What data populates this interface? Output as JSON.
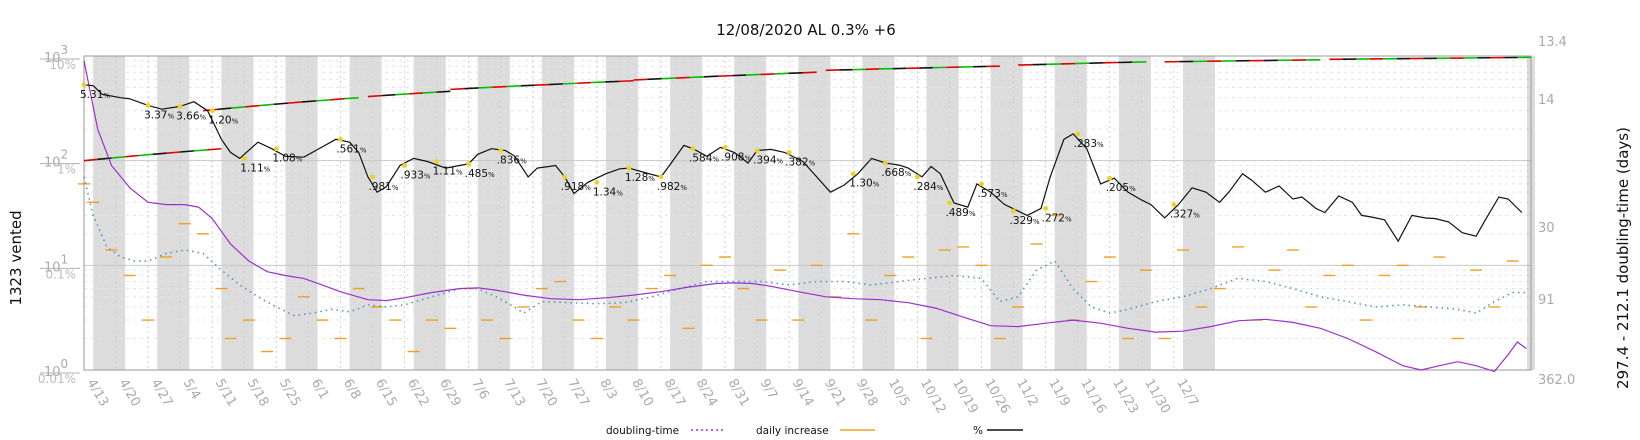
{
  "chart_data": {
    "type": "line",
    "title": "12/08/2020 AL 0.3% +6",
    "ylabel_left": "1323 vented",
    "ylabel_right": "297.4 - 212.1 doubling-time (days)",
    "left_axis": {
      "scale": "log",
      "range": [
        1,
        1000
      ],
      "ticks": [
        "10",
        "10",
        "10",
        "10"
      ],
      "exps": [
        "0",
        "1",
        "2",
        "3"
      ]
    },
    "pct_axis": {
      "scale": "log",
      "range": [
        0.01,
        10
      ],
      "ticks": [
        "0.01%",
        "0.1%",
        "1%",
        "10%"
      ]
    },
    "right_axis": {
      "ticks": [
        "13.4",
        "14",
        "30",
        "91",
        "362.0"
      ]
    },
    "x_dates": [
      "4/13",
      "4/20",
      "4/27",
      "5/4",
      "5/11",
      "5/18",
      "5/25",
      "6/1",
      "6/8",
      "6/15",
      "6/22",
      "6/29",
      "7/6",
      "7/13",
      "7/20",
      "7/27",
      "8/3",
      "8/10",
      "8/17",
      "8/24",
      "8/31",
      "9/7",
      "9/14",
      "9/21",
      "9/28",
      "10/5",
      "10/12",
      "10/19",
      "10/26",
      "11/2",
      "11/9",
      "11/16",
      "11/23",
      "11/30",
      "12/7"
    ],
    "grid": true,
    "legend": {
      "placement": "bottom",
      "entries": [
        "doubling-time",
        "daily increase",
        "%"
      ]
    },
    "colors": {
      "doubling": "#9b30d0",
      "doubling_dotted": "#4a90c0",
      "daily": "#f0a020",
      "pct": "#111111",
      "shade": "#dcdcdc",
      "up": "#e00000",
      "down": "#00c000"
    },
    "pct_labels": [
      {
        "date": "4/13",
        "label": "5.31"
      },
      {
        "date": "4/27",
        "label": "3.37"
      },
      {
        "date": "5/4",
        "label": "3.66"
      },
      {
        "date": "5/11",
        "label": "1.20"
      },
      {
        "date": "5/18",
        "label": "1.11"
      },
      {
        "date": "5/25",
        "label": "1.08"
      },
      {
        "date": "6/8",
        "label": ".561"
      },
      {
        "date": "6/15",
        "label": ".981"
      },
      {
        "date": "6/22",
        "label": ".933"
      },
      {
        "date": "6/29",
        "label": "1.11"
      },
      {
        "date": "7/6",
        "label": ".485"
      },
      {
        "date": "7/13",
        "label": ".836"
      },
      {
        "date": "7/27",
        "label": ".918"
      },
      {
        "date": "8/3",
        "label": "1.34"
      },
      {
        "date": "8/10",
        "label": "1.28"
      },
      {
        "date": "8/17",
        "label": ".982"
      },
      {
        "date": "8/24",
        "label": ".584"
      },
      {
        "date": "8/31",
        "label": ".908"
      },
      {
        "date": "9/7",
        "label": ".394"
      },
      {
        "date": "9/14",
        "label": ".382"
      },
      {
        "date": "9/28",
        "label": "1.30"
      },
      {
        "date": "10/5",
        "label": ".668"
      },
      {
        "date": "10/12",
        "label": ".284"
      },
      {
        "date": "10/19",
        "label": ".489"
      },
      {
        "date": "10/26",
        "label": ".573"
      },
      {
        "date": "11/2",
        "label": ".329"
      },
      {
        "date": "11/9",
        "label": ".272"
      },
      {
        "date": "11/16",
        "label": ".283"
      },
      {
        "date": "11/23",
        "label": ".205"
      },
      {
        "date": "12/7",
        "label": ".327"
      }
    ],
    "pct_series": [
      [
        0,
        5.3
      ],
      [
        2,
        5.2
      ],
      [
        4,
        4.3
      ],
      [
        8,
        4.0
      ],
      [
        10,
        3.9
      ],
      [
        14,
        3.37
      ],
      [
        17,
        3.1
      ],
      [
        21,
        3.3
      ],
      [
        24,
        3.66
      ],
      [
        27,
        3.0
      ],
      [
        30,
        1.6
      ],
      [
        32,
        1.2
      ],
      [
        34,
        1.05
      ],
      [
        38,
        1.5
      ],
      [
        41,
        1.3
      ],
      [
        44,
        1.1
      ],
      [
        48,
        1.08
      ],
      [
        52,
        1.35
      ],
      [
        55,
        1.6
      ],
      [
        58,
        1.5
      ],
      [
        60,
        1.2
      ],
      [
        62,
        0.7
      ],
      [
        64,
        0.5
      ],
      [
        66,
        0.561
      ],
      [
        69,
        0.9
      ],
      [
        72,
        1.05
      ],
      [
        75,
        0.981
      ],
      [
        79,
        0.85
      ],
      [
        82,
        0.9
      ],
      [
        84,
        0.933
      ],
      [
        86,
        1.15
      ],
      [
        89,
        1.3
      ],
      [
        92,
        1.25
      ],
      [
        94,
        1.11
      ],
      [
        97,
        0.7
      ],
      [
        99,
        0.85
      ],
      [
        103,
        0.9
      ],
      [
        105,
        0.7
      ],
      [
        107,
        0.485
      ],
      [
        110,
        0.62
      ],
      [
        114,
        0.75
      ],
      [
        117,
        0.836
      ],
      [
        119,
        0.85
      ],
      [
        122,
        0.78
      ],
      [
        126,
        0.7
      ],
      [
        128,
        0.918
      ],
      [
        131,
        1.4
      ],
      [
        133,
        1.3
      ],
      [
        136,
        1.1
      ],
      [
        139,
        1.34
      ],
      [
        142,
        1.2
      ],
      [
        145,
        0.95
      ],
      [
        147,
        1.25
      ],
      [
        150,
        1.28
      ],
      [
        153,
        1.2
      ],
      [
        157,
        0.982
      ],
      [
        160,
        0.7
      ],
      [
        163,
        0.5
      ],
      [
        166,
        0.584
      ],
      [
        169,
        0.75
      ],
      [
        172,
        1.05
      ],
      [
        175,
        0.95
      ],
      [
        178,
        0.908
      ],
      [
        180,
        0.85
      ],
      [
        183,
        0.7
      ],
      [
        185,
        0.88
      ],
      [
        187,
        0.75
      ],
      [
        190,
        0.394
      ],
      [
        193,
        0.36
      ],
      [
        195,
        0.6
      ],
      [
        198,
        0.5
      ],
      [
        201,
        0.382
      ],
      [
        204,
        0.33
      ],
      [
        206,
        0.3
      ],
      [
        209,
        0.35
      ],
      [
        211,
        0.7
      ],
      [
        214,
        1.6
      ],
      [
        216,
        1.8
      ],
      [
        219,
        1.3
      ],
      [
        222,
        0.6
      ],
      [
        225,
        0.68
      ],
      [
        228,
        0.5
      ],
      [
        231,
        0.42
      ],
      [
        233,
        0.38
      ],
      [
        236,
        0.284
      ],
      [
        239,
        0.38
      ],
      [
        242,
        0.55
      ],
      [
        245,
        0.5
      ],
      [
        248,
        0.4
      ],
      [
        250,
        0.5
      ],
      [
        253,
        0.75
      ],
      [
        255,
        0.65
      ],
      [
        258,
        0.5
      ],
      [
        261,
        0.573
      ],
      [
        264,
        0.43
      ],
      [
        266,
        0.45
      ],
      [
        269,
        0.35
      ],
      [
        271,
        0.32
      ],
      [
        274,
        0.46
      ],
      [
        277,
        0.4
      ],
      [
        279,
        0.3
      ],
      [
        281,
        0.29
      ],
      [
        284,
        0.272
      ],
      [
        287,
        0.17
      ],
      [
        290,
        0.3
      ],
      [
        293,
        0.283
      ],
      [
        295,
        0.28
      ],
      [
        298,
        0.26
      ],
      [
        301,
        0.205
      ],
      [
        304,
        0.19
      ],
      [
        306,
        0.27
      ],
      [
        309,
        0.45
      ],
      [
        311,
        0.43
      ],
      [
        314,
        0.32
      ]
    ],
    "doubling_series": [
      [
        0,
        900
      ],
      [
        3,
        200
      ],
      [
        6,
        90
      ],
      [
        10,
        55
      ],
      [
        14,
        40
      ],
      [
        18,
        38
      ],
      [
        22,
        38
      ],
      [
        25,
        36
      ],
      [
        28,
        28
      ],
      [
        32,
        16
      ],
      [
        36,
        11
      ],
      [
        40,
        8.7
      ],
      [
        44,
        8.0
      ],
      [
        48,
        7.5
      ],
      [
        52,
        6.5
      ],
      [
        56,
        5.6
      ],
      [
        62,
        4.7
      ],
      [
        66,
        4.6
      ],
      [
        70,
        4.9
      ],
      [
        76,
        5.5
      ],
      [
        82,
        6.0
      ],
      [
        86,
        6.1
      ],
      [
        90,
        5.8
      ],
      [
        96,
        5.2
      ],
      [
        102,
        4.8
      ],
      [
        108,
        4.7
      ],
      [
        114,
        4.9
      ],
      [
        120,
        5.2
      ],
      [
        126,
        5.6
      ],
      [
        132,
        6.2
      ],
      [
        138,
        6.7
      ],
      [
        142,
        6.8
      ],
      [
        146,
        6.7
      ],
      [
        150,
        6.3
      ],
      [
        156,
        5.6
      ],
      [
        162,
        5.0
      ],
      [
        168,
        4.8
      ],
      [
        174,
        4.7
      ],
      [
        180,
        4.4
      ],
      [
        186,
        3.9
      ],
      [
        192,
        3.2
      ],
      [
        198,
        2.65
      ],
      [
        204,
        2.6
      ],
      [
        210,
        2.8
      ],
      [
        216,
        3.0
      ],
      [
        222,
        2.8
      ],
      [
        228,
        2.5
      ],
      [
        234,
        2.3
      ],
      [
        240,
        2.35
      ],
      [
        246,
        2.6
      ],
      [
        252,
        2.95
      ],
      [
        258,
        3.05
      ],
      [
        264,
        2.85
      ],
      [
        270,
        2.5
      ],
      [
        276,
        2.0
      ],
      [
        282,
        1.5
      ],
      [
        288,
        1.1
      ],
      [
        292,
        1.0
      ],
      [
        296,
        1.1
      ],
      [
        300,
        1.2
      ],
      [
        304,
        1.1
      ],
      [
        308,
        0.97
      ],
      [
        311,
        1.4
      ],
      [
        313,
        1.85
      ],
      [
        315,
        1.6
      ]
    ],
    "daily_dotted_series": [
      [
        0,
        70
      ],
      [
        2,
        30
      ],
      [
        5,
        15
      ],
      [
        8,
        12
      ],
      [
        11,
        11
      ],
      [
        14,
        11
      ],
      [
        18,
        13
      ],
      [
        22,
        14
      ],
      [
        26,
        13
      ],
      [
        30,
        9
      ],
      [
        34,
        6.5
      ],
      [
        38,
        5
      ],
      [
        42,
        4
      ],
      [
        46,
        3.3
      ],
      [
        50,
        3.5
      ],
      [
        54,
        3.8
      ],
      [
        58,
        3.6
      ],
      [
        62,
        4.2
      ],
      [
        66,
        4
      ],
      [
        70,
        4.2
      ],
      [
        76,
        5
      ],
      [
        82,
        6
      ],
      [
        86,
        6
      ],
      [
        90,
        5
      ],
      [
        94,
        4
      ],
      [
        96,
        3.5
      ],
      [
        100,
        4.5
      ],
      [
        106,
        4.4
      ],
      [
        112,
        4.3
      ],
      [
        118,
        4.4
      ],
      [
        124,
        5
      ],
      [
        130,
        6
      ],
      [
        136,
        7
      ],
      [
        142,
        7
      ],
      [
        148,
        7
      ],
      [
        154,
        6.5
      ],
      [
        160,
        7
      ],
      [
        166,
        7
      ],
      [
        172,
        6.5
      ],
      [
        178,
        7
      ],
      [
        184,
        7.5
      ],
      [
        190,
        8
      ],
      [
        196,
        7.5
      ],
      [
        200,
        4.5
      ],
      [
        204,
        5
      ],
      [
        208,
        9
      ],
      [
        212,
        11
      ],
      [
        216,
        6
      ],
      [
        220,
        4
      ],
      [
        224,
        3.5
      ],
      [
        228,
        3.8
      ],
      [
        234,
        4.5
      ],
      [
        240,
        5
      ],
      [
        246,
        6
      ],
      [
        252,
        7.5
      ],
      [
        258,
        7
      ],
      [
        264,
        6
      ],
      [
        270,
        5
      ],
      [
        276,
        4.5
      ],
      [
        282,
        4
      ],
      [
        288,
        4.2
      ],
      [
        294,
        4
      ],
      [
        300,
        3.8
      ],
      [
        304,
        3.5
      ],
      [
        308,
        4.5
      ],
      [
        312,
        5.5
      ],
      [
        315,
        5.5
      ]
    ],
    "daily_increase_dashes": [
      [
        0,
        60
      ],
      [
        2,
        40
      ],
      [
        6,
        14
      ],
      [
        10,
        8
      ],
      [
        14,
        3
      ],
      [
        18,
        12
      ],
      [
        22,
        25
      ],
      [
        26,
        20
      ],
      [
        30,
        6
      ],
      [
        32,
        2
      ],
      [
        36,
        3
      ],
      [
        40,
        1.5
      ],
      [
        44,
        2
      ],
      [
        48,
        5
      ],
      [
        52,
        3
      ],
      [
        56,
        2
      ],
      [
        60,
        6
      ],
      [
        64,
        4
      ],
      [
        68,
        3
      ],
      [
        72,
        1.5
      ],
      [
        76,
        3
      ],
      [
        80,
        2.5
      ],
      [
        84,
        6
      ],
      [
        88,
        3
      ],
      [
        92,
        2
      ],
      [
        96,
        4
      ],
      [
        100,
        6
      ],
      [
        104,
        7
      ],
      [
        108,
        3
      ],
      [
        112,
        2
      ],
      [
        116,
        4
      ],
      [
        120,
        3
      ],
      [
        124,
        6
      ],
      [
        128,
        8
      ],
      [
        132,
        2.5
      ],
      [
        136,
        10
      ],
      [
        140,
        12
      ],
      [
        144,
        6
      ],
      [
        148,
        3
      ],
      [
        152,
        9
      ],
      [
        156,
        3
      ],
      [
        160,
        10
      ],
      [
        164,
        5
      ],
      [
        168,
        20
      ],
      [
        172,
        3
      ],
      [
        176,
        8
      ],
      [
        180,
        12
      ],
      [
        184,
        2
      ],
      [
        188,
        14
      ],
      [
        192,
        15
      ],
      [
        196,
        10
      ],
      [
        200,
        2
      ],
      [
        204,
        4
      ],
      [
        208,
        16
      ],
      [
        212,
        30
      ],
      [
        216,
        3
      ],
      [
        220,
        7
      ],
      [
        224,
        12
      ],
      [
        228,
        2
      ],
      [
        232,
        9
      ],
      [
        236,
        2
      ],
      [
        240,
        14
      ],
      [
        244,
        4
      ],
      [
        248,
        6
      ],
      [
        252,
        15
      ],
      [
        256,
        3
      ],
      [
        260,
        9
      ],
      [
        264,
        14
      ],
      [
        268,
        4
      ],
      [
        272,
        8
      ],
      [
        276,
        10
      ],
      [
        280,
        3
      ],
      [
        284,
        8
      ],
      [
        288,
        10
      ],
      [
        292,
        4
      ],
      [
        296,
        12
      ],
      [
        300,
        2
      ],
      [
        304,
        9
      ],
      [
        308,
        4
      ],
      [
        312,
        11
      ]
    ],
    "trend_segments": [
      {
        "x": [
          0,
          30
        ],
        "y": [
          1.0,
          1.3
        ],
        "dir": "mixed"
      },
      {
        "x": [
          26,
          60
        ],
        "y": [
          3.0,
          4.0
        ],
        "dir": "mixed"
      },
      {
        "x": [
          62,
          80
        ],
        "y": [
          4.1,
          4.6
        ],
        "dir": "mixed"
      },
      {
        "x": [
          80,
          120
        ],
        "y": [
          4.8,
          5.8
        ],
        "dir": "mixed"
      },
      {
        "x": [
          120,
          160
        ],
        "y": [
          5.9,
          7.0
        ],
        "dir": "mixed"
      },
      {
        "x": [
          162,
          200
        ],
        "y": [
          7.3,
          8.0
        ],
        "dir": "mixed"
      },
      {
        "x": [
          204,
          232
        ],
        "y": [
          8.2,
          8.8
        ],
        "dir": "mixed"
      },
      {
        "x": [
          236,
          270
        ],
        "y": [
          8.8,
          9.2
        ],
        "dir": "mixed"
      },
      {
        "x": [
          272,
          316
        ],
        "y": [
          9.3,
          9.7
        ],
        "dir": "mixed"
      }
    ]
  },
  "legend": {
    "doubling_label": "doubling-time",
    "daily_label": "daily increase",
    "pct_label": "%"
  }
}
